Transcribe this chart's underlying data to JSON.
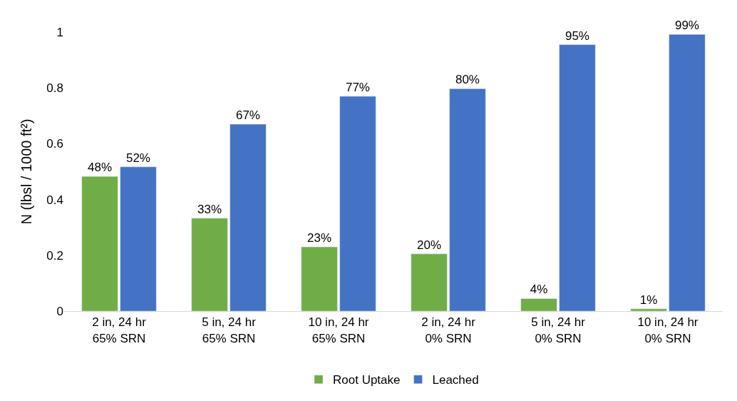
{
  "chart_data": {
    "type": "bar",
    "ylabel": "N (lbsl / 1000 ft²)",
    "categories": [
      "2 in, 24 hr\n65% SRN",
      "5 in, 24 hr\n65% SRN",
      "10 in, 24 hr\n65% SRN",
      "2 in, 24 hr\n0% SRN",
      "5 in, 24 hr\n0% SRN",
      "10 in, 24 hr\n0% SRN"
    ],
    "series": [
      {
        "name": "Root Uptake",
        "color": "#70ad47",
        "values": [
          0.483,
          0.333,
          0.23,
          0.205,
          0.045,
          0.008
        ],
        "value_labels": [
          "48%",
          "33%",
          "23%",
          "20%",
          "4%",
          "1%"
        ]
      },
      {
        "name": "Leached",
        "color": "#4472c4",
        "values": [
          0.517,
          0.67,
          0.77,
          0.797,
          0.955,
          0.992
        ],
        "value_labels": [
          "52%",
          "67%",
          "77%",
          "80%",
          "95%",
          "99%"
        ]
      }
    ],
    "ylim": [
      0,
      1
    ],
    "yticks": [
      0,
      0.2,
      0.4,
      0.6,
      0.8,
      1
    ],
    "grid": false,
    "legend": "bottom"
  }
}
